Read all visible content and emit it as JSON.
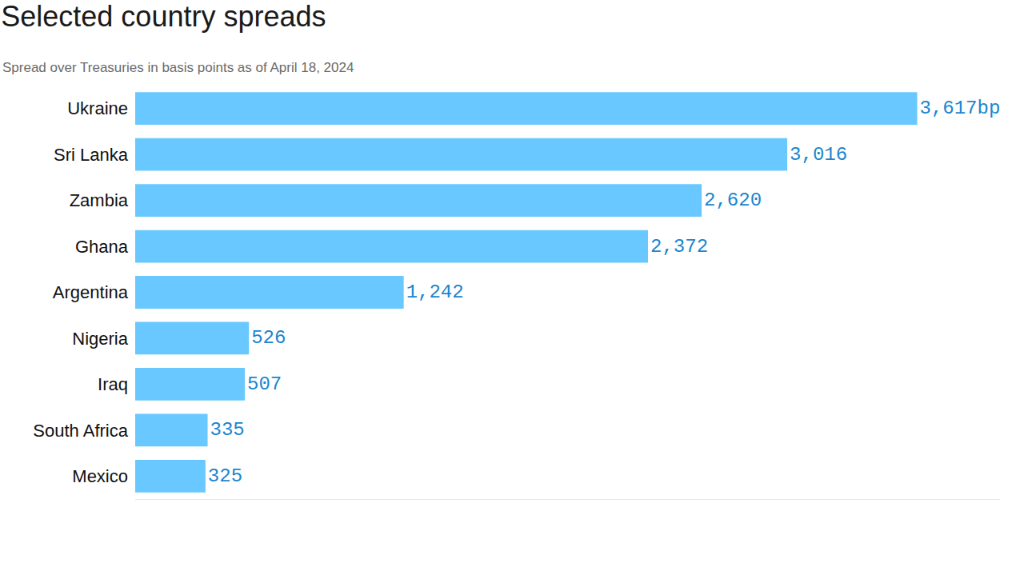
{
  "chart_data": {
    "type": "bar",
    "title": "Selected country spreads",
    "subtitle": "Spread over Treasuries in basis points as of April 18, 2024",
    "orientation": "horizontal",
    "categories": [
      "Ukraine",
      "Sri Lanka",
      "Zambia",
      "Ghana",
      "Argentina",
      "Nigeria",
      "Iraq",
      "South Africa",
      "Mexico"
    ],
    "values": [
      3617,
      3016,
      2620,
      2372,
      1242,
      526,
      507,
      335,
      325
    ],
    "value_labels": [
      "3,617bp",
      "3,016",
      "2,620",
      "2,372",
      "1,242",
      "526",
      "507",
      "335",
      "325"
    ],
    "color": "#69c8ff",
    "xlim": [
      0,
      4000
    ],
    "tick_labels": "y",
    "data_labels": true,
    "grid": false
  }
}
